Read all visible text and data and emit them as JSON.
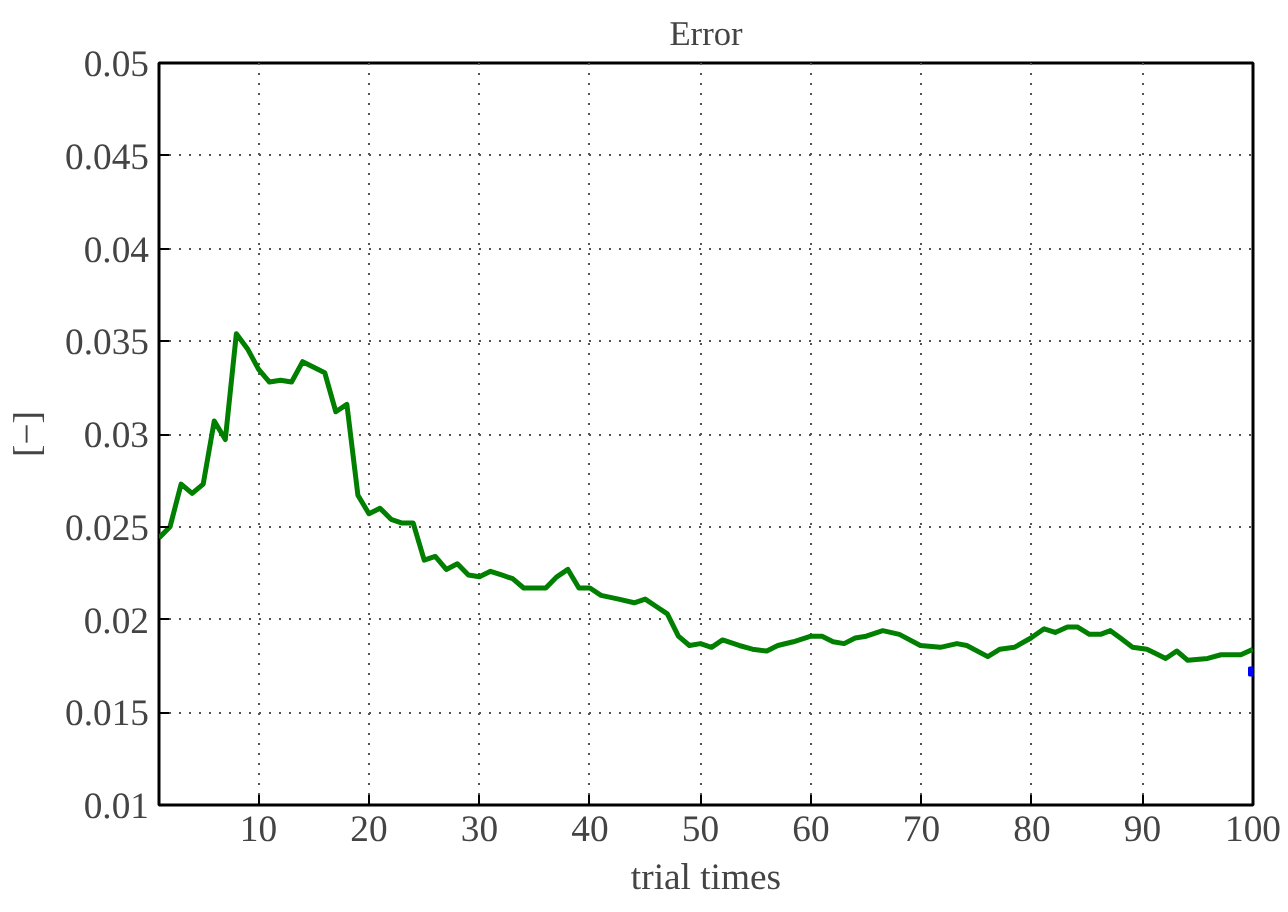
{
  "chart_data": {
    "type": "line",
    "title": "Error",
    "xlabel": "trial times",
    "ylabel": "[−]",
    "xlim": [
      1,
      100
    ],
    "ylim": [
      0.01,
      0.05
    ],
    "xticks": [
      10,
      20,
      30,
      40,
      50,
      60,
      70,
      80,
      90,
      100
    ],
    "yticks": [
      0.01,
      0.015,
      0.02,
      0.025,
      0.03,
      0.035,
      0.04,
      0.045,
      0.05
    ],
    "grid": true,
    "line_style": "solid",
    "series": [
      {
        "color": "#007f00",
        "x": [
          1,
          2,
          3,
          4,
          5,
          6,
          7,
          8,
          9,
          10,
          11,
          12,
          13,
          14,
          15,
          16,
          17,
          18,
          19,
          20,
          21,
          22,
          23,
          24,
          25,
          26,
          27,
          28,
          29,
          30,
          31,
          32,
          33,
          34,
          36,
          37,
          38,
          39,
          40,
          41,
          42.6,
          44,
          45,
          46,
          47,
          48,
          49,
          50,
          51,
          52,
          53.5,
          54.7,
          56,
          57,
          58.4,
          60,
          61,
          62,
          63,
          64,
          65,
          66.5,
          68,
          69.9,
          71.7,
          73.2,
          74.1,
          76,
          77.1,
          78.4,
          79.9,
          81.1,
          82.1,
          83.2,
          84.1,
          85.2,
          86.2,
          87.1,
          88,
          89.1,
          90.4,
          91.1,
          92.1,
          93.1,
          94.1,
          95.9,
          97.1,
          98.9,
          100
        ],
        "values": [
          0.0244,
          0.025,
          0.0273,
          0.0268,
          0.0273,
          0.0307,
          0.0297,
          0.0354,
          0.0346,
          0.0335,
          0.0328,
          0.0329,
          0.0328,
          0.0339,
          0.0336,
          0.0333,
          0.0312,
          0.0316,
          0.0267,
          0.0257,
          0.026,
          0.0254,
          0.0252,
          0.0252,
          0.0232,
          0.0234,
          0.0227,
          0.023,
          0.0224,
          0.0223,
          0.0226,
          0.0224,
          0.0222,
          0.0217,
          0.0217,
          0.0223,
          0.0227,
          0.0217,
          0.0217,
          0.0213,
          0.0211,
          0.0209,
          0.0211,
          0.0207,
          0.0203,
          0.0191,
          0.0186,
          0.0187,
          0.0185,
          0.0189,
          0.0186,
          0.0184,
          0.0183,
          0.0186,
          0.0188,
          0.0191,
          0.0191,
          0.0188,
          0.0187,
          0.019,
          0.0191,
          0.0194,
          0.0192,
          0.0186,
          0.0185,
          0.0187,
          0.0186,
          0.018,
          0.0184,
          0.0185,
          0.019,
          0.0195,
          0.0193,
          0.0196,
          0.0196,
          0.0192,
          0.0192,
          0.0194,
          0.019,
          0.0185,
          0.0184,
          0.0182,
          0.0179,
          0.0183,
          0.0178,
          0.0179,
          0.0181,
          0.0181,
          0.0184
        ]
      },
      {
        "type": "scatter",
        "color": "#0000ff",
        "marker": "square",
        "x": [
          100
        ],
        "values": [
          0.0172
        ]
      }
    ]
  }
}
